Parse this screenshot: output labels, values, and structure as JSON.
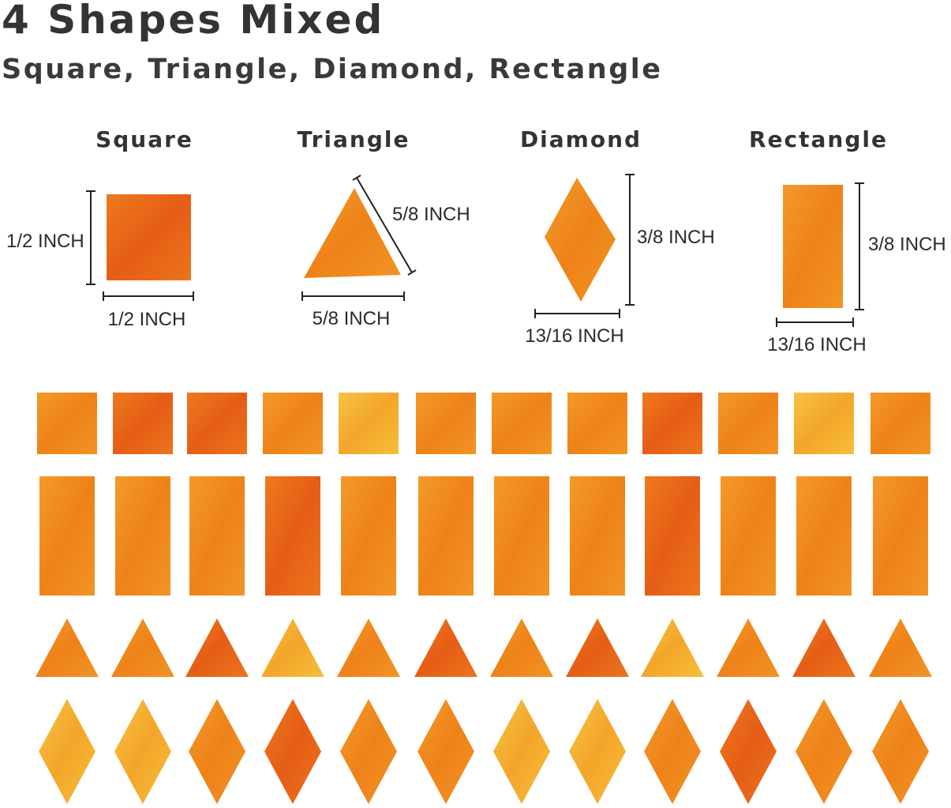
{
  "title": "4 Shapes Mixed",
  "subtitle": "Square, Triangle, Diamond, Rectangle",
  "shapes": [
    {
      "name": "Square",
      "height_label": "1/2 INCH",
      "width_label": "1/2 INCH"
    },
    {
      "name": "Triangle",
      "side_label": "5/8 INCH",
      "width_label": "5/8 INCH"
    },
    {
      "name": "Diamond",
      "height_label": "3/8 INCH",
      "width_label": "13/16 INCH"
    },
    {
      "name": "Rectangle",
      "height_label": "3/8 INCH",
      "width_label": "13/16 INCH"
    }
  ],
  "colors": {
    "orange": "#f0891e",
    "deep_orange": "#e9621a",
    "amber": "#f4aa2a",
    "text": "#333333"
  },
  "tile_rows": [
    {
      "shape": "square",
      "tones": [
        "orange",
        "deep_orange",
        "deep_orange",
        "orange",
        "amber",
        "orange",
        "orange",
        "orange",
        "deep_orange",
        "orange",
        "amber",
        "orange"
      ]
    },
    {
      "shape": "rectangle",
      "tones": [
        "orange",
        "orange",
        "orange",
        "deep_orange",
        "orange",
        "orange",
        "orange",
        "orange",
        "deep_orange",
        "orange",
        "orange",
        "orange"
      ]
    },
    {
      "shape": "triangle",
      "tones": [
        "orange",
        "orange",
        "deep_orange",
        "amber",
        "orange",
        "deep_orange",
        "orange",
        "deep_orange",
        "amber",
        "orange",
        "deep_orange",
        "orange"
      ]
    },
    {
      "shape": "diamond",
      "tones": [
        "amber",
        "amber",
        "orange",
        "deep_orange",
        "orange",
        "orange",
        "amber",
        "amber",
        "orange",
        "deep_orange",
        "orange",
        "orange"
      ]
    }
  ]
}
